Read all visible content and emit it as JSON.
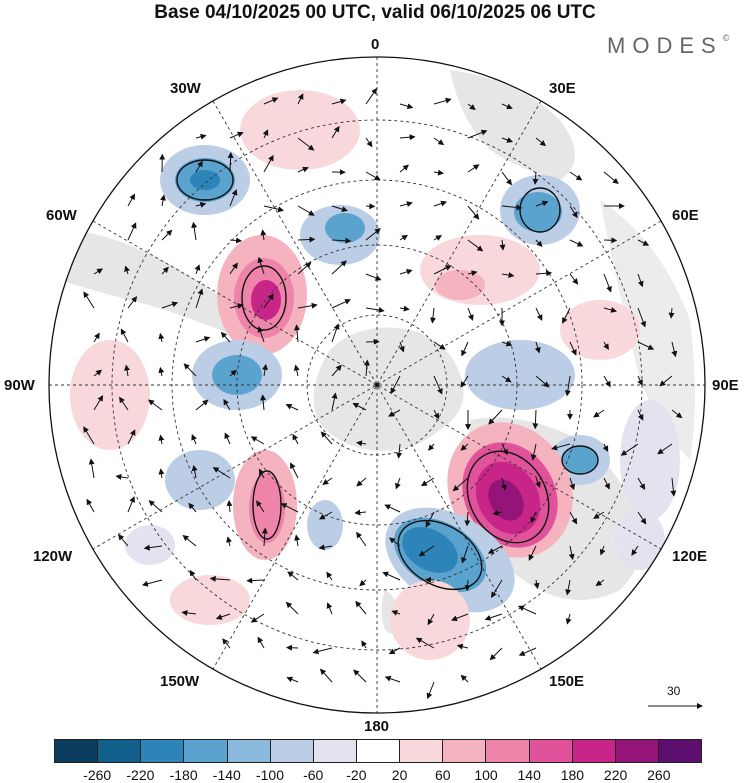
{
  "title": "Base 04/10/2025 00 UTC, valid 06/10/2025 06 UTC",
  "brand": "MODES",
  "brand_mark": "©",
  "longitude_labels": {
    "top": "0",
    "e30": "30E",
    "e60": "60E",
    "e90": "90E",
    "e120": "120E",
    "e150": "150E",
    "bottom": "180",
    "w150": "150W",
    "w120": "120W",
    "w90": "90W",
    "w60": "60W",
    "w30": "30W"
  },
  "reference_vector": {
    "label": "30"
  },
  "colorbar": {
    "colors": [
      "#0b3d5e",
      "#135f8c",
      "#2d84b8",
      "#5aa3cf",
      "#8ab9dc",
      "#bccde6",
      "#e3e3f0",
      "#ffffff",
      "#f9d8dc",
      "#f5b3c0",
      "#ee84aa",
      "#e0539a",
      "#c72588",
      "#951479",
      "#5c0f6e"
    ],
    "labels": [
      "-260",
      "-220",
      "-180",
      "-140",
      "-100",
      "-60",
      "-20",
      "20",
      "60",
      "100",
      "140",
      "180",
      "220",
      "260"
    ]
  }
}
